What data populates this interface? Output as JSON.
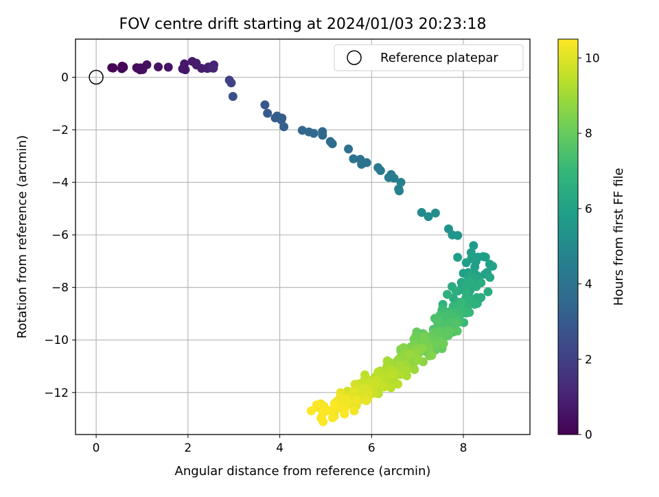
{
  "chart_data": {
    "type": "scatter",
    "title": "FOV centre drift starting at 2024/01/03 20:23:18",
    "xlabel": "Angular distance from reference (arcmin)",
    "ylabel": "Rotation from reference (arcmin)",
    "xlim": [
      -0.45,
      9.45
    ],
    "ylim": [
      -13.6,
      1.45
    ],
    "xticks": [
      0,
      2,
      4,
      6,
      8
    ],
    "yticks": [
      0,
      -2,
      -4,
      -6,
      -8,
      -10,
      -12
    ],
    "grid": true,
    "legend": {
      "position": "top-right",
      "entries": [
        "Reference platepar"
      ]
    },
    "reference_point": {
      "x": 0,
      "y": 0,
      "label": "Reference platepar"
    },
    "colorbar": {
      "label": "Hours from first FF file",
      "range": [
        0,
        10.5
      ],
      "ticks": [
        0,
        2,
        4,
        6,
        8,
        10
      ],
      "colormap": "viridis"
    },
    "colormap_stops": [
      "#440154",
      "#482878",
      "#3e4989",
      "#31688e",
      "#26828e",
      "#1f9e89",
      "#35b779",
      "#6ece58",
      "#b5de2b",
      "#fde725"
    ],
    "anchors": [
      {
        "x": 0.35,
        "y": 0.35,
        "t": 0.0
      },
      {
        "x": 1.0,
        "y": 0.3,
        "t": 0.4
      },
      {
        "x": 2.0,
        "y": 0.45,
        "t": 0.7
      },
      {
        "x": 2.6,
        "y": 0.4,
        "t": 1.0
      },
      {
        "x": 3.1,
        "y": -0.6,
        "t": 2.6
      },
      {
        "x": 3.9,
        "y": -1.4,
        "t": 3.0
      },
      {
        "x": 4.3,
        "y": -2.1,
        "t": 3.3
      },
      {
        "x": 4.9,
        "y": -2.2,
        "t": 3.6
      },
      {
        "x": 5.8,
        "y": -3.2,
        "t": 4.0
      },
      {
        "x": 6.4,
        "y": -3.8,
        "t": 4.4
      },
      {
        "x": 6.6,
        "y": -4.2,
        "t": 4.6
      },
      {
        "x": 8.1,
        "y": -6.4,
        "t": 5.7
      },
      {
        "x": 8.3,
        "y": -7.4,
        "t": 6.0
      },
      {
        "x": 8.0,
        "y": -8.6,
        "t": 6.7
      },
      {
        "x": 7.5,
        "y": -9.6,
        "t": 7.6
      },
      {
        "x": 7.0,
        "y": -10.4,
        "t": 8.4
      },
      {
        "x": 6.4,
        "y": -11.3,
        "t": 9.2
      },
      {
        "x": 5.8,
        "y": -12.0,
        "t": 9.8
      },
      {
        "x": 5.3,
        "y": -12.5,
        "t": 10.3
      },
      {
        "x": 4.9,
        "y": -12.8,
        "t": 10.5
      }
    ],
    "segment_density": [
      10,
      8,
      8,
      3,
      4,
      4,
      5,
      5,
      5,
      3,
      8,
      14,
      45,
      65,
      75,
      75,
      70,
      55,
      25
    ]
  }
}
